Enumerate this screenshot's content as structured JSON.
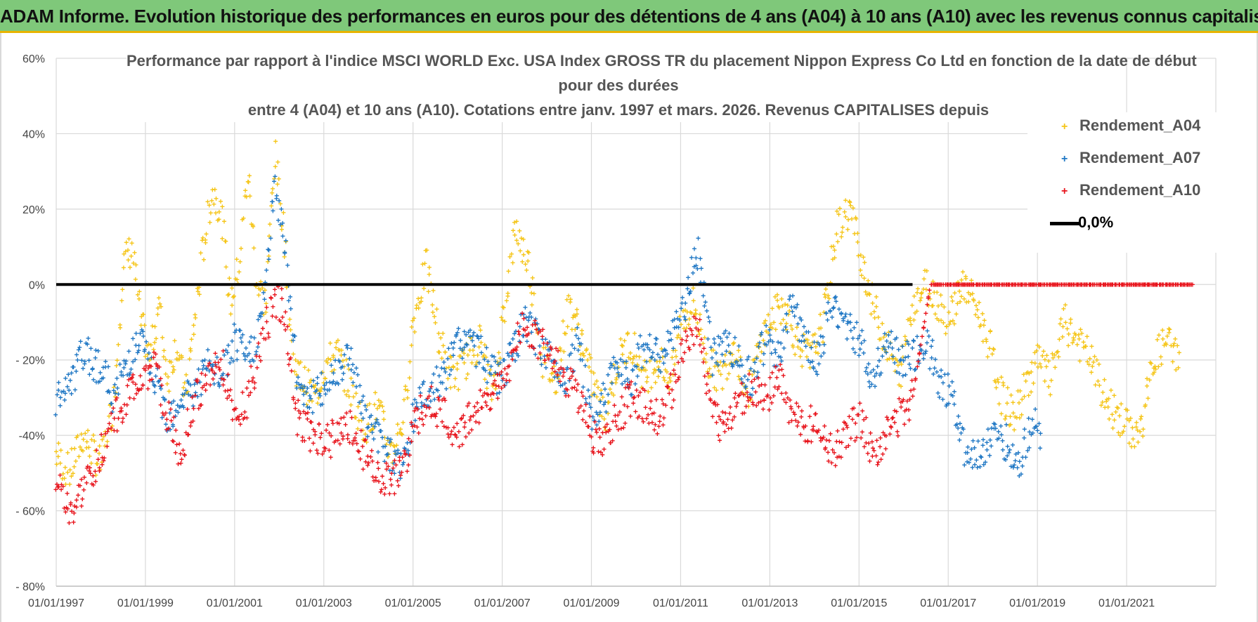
{
  "banner": {
    "title": "ADAM Informe. Evolution historique des performances en euros pour des détentions de 4 ans (A04) à 10 ans (A10) avec les revenus connus capitalisés"
  },
  "colors": {
    "banner_bg": "#7fc87a",
    "banner_border": "#e8b400",
    "a04": "#f5c518",
    "a07": "#1f77c4",
    "a10": "#e8141c",
    "zero_line": "#000000",
    "grid": "#d9d9d9"
  },
  "chart_data": {
    "type": "scatter",
    "title_lines": [
      "Performance par rapport à l'indice MSCI WORLD Exc. USA Index GROSS TR  du placement Nippon Express Co Ltd en fonction de la date de début",
      "pour des durées",
      "entre 4 (A04) et 10 ans (A10). Cotations entre janv. 1997 et mars. 2026. Revenus CAPITALISES depuis"
    ],
    "xlim": [
      1997.0,
      2023.0
    ],
    "ylim": [
      -80,
      60
    ],
    "y_ticks": [
      60,
      40,
      20,
      0,
      -20,
      -40,
      -60,
      -80
    ],
    "y_tick_labels": [
      "60%",
      "40%",
      "20%",
      "0%",
      "- 20%",
      "-40%",
      "- 60%",
      "- 80%"
    ],
    "x_ticks": [
      1997,
      1999,
      2001,
      2003,
      2005,
      2007,
      2009,
      2011,
      2013,
      2015,
      2017,
      2019,
      2021
    ],
    "x_tick_labels": [
      "01/01/1997",
      "01/01/1999",
      "01/01/2001",
      "01/01/2003",
      "01/01/2005",
      "01/01/2007",
      "01/01/2009",
      "01/01/2011",
      "01/01/2013",
      "01/01/2015",
      "01/01/2017",
      "01/01/2019",
      "01/01/2021"
    ],
    "grid": true,
    "legend_position": "top-right",
    "series": [
      {
        "name": "Rendement_A04",
        "marker": "+",
        "color": "#f5c518",
        "x": [
          1997.0,
          1997.3,
          1997.6,
          1998.0,
          1998.3,
          1998.5,
          1998.7,
          1998.9,
          1999.1,
          1999.3,
          1999.5,
          1999.7,
          1999.9,
          2000.1,
          2000.3,
          2000.5,
          2000.7,
          2000.9,
          2001.1,
          2001.3,
          2001.5,
          2001.7,
          2001.9,
          2002.1,
          2002.3,
          2002.5,
          2002.8,
          2003.0,
          2003.3,
          2003.6,
          2003.9,
          2004.2,
          2004.5,
          2004.8,
          2005.0,
          2005.3,
          2005.6,
          2005.9,
          2006.2,
          2006.5,
          2006.8,
          2007.0,
          2007.3,
          2007.6,
          2007.9,
          2008.2,
          2008.5,
          2008.8,
          2009.0,
          2009.3,
          2009.6,
          2009.9,
          2010.2,
          2010.5,
          2010.8,
          2011.0,
          2011.3,
          2011.6,
          2011.9,
          2012.2,
          2012.5,
          2012.8,
          2013.0,
          2013.3,
          2013.6,
          2013.9,
          2014.2,
          2014.5,
          2014.8,
          2015.0,
          2015.3,
          2015.6,
          2015.9,
          2016.2,
          2016.5,
          2016.8,
          2017.0,
          2017.3,
          2017.6,
          2017.9,
          2018.2,
          2018.5,
          2018.8,
          2019.0,
          2019.3,
          2019.6,
          2019.9,
          2020.2,
          2020.5,
          2020.8,
          2021.0,
          2021.3,
          2021.6,
          2021.9,
          2022.2
        ],
        "y": [
          -45,
          -50,
          -40,
          -48,
          -30,
          5,
          10,
          -10,
          -20,
          -5,
          -25,
          -15,
          -30,
          -10,
          10,
          25,
          20,
          -5,
          5,
          30,
          0,
          -5,
          35,
          15,
          -20,
          -25,
          -30,
          -22,
          -18,
          -28,
          -38,
          -32,
          -45,
          -35,
          -10,
          5,
          -15,
          -25,
          -20,
          -15,
          -30,
          -10,
          15,
          5,
          -20,
          -25,
          -5,
          -15,
          -25,
          -35,
          -20,
          -15,
          -25,
          -20,
          -25,
          -10,
          -5,
          -20,
          -25,
          -15,
          -30,
          -15,
          -10,
          -5,
          -15,
          -20,
          -10,
          15,
          20,
          10,
          -5,
          -15,
          -25,
          -5,
          0,
          -5,
          -10,
          0,
          -5,
          -15,
          -30,
          -35,
          -25,
          -20,
          -25,
          -10,
          -15,
          -20,
          -30,
          -35,
          -38,
          -40,
          -20,
          -15,
          -20
        ]
      },
      {
        "name": "Rendement_A07",
        "marker": "+",
        "color": "#1f77c4",
        "x": [
          1997.0,
          1997.3,
          1997.6,
          1998.0,
          1998.3,
          1998.6,
          1998.9,
          1999.2,
          1999.5,
          1999.8,
          2000.1,
          2000.4,
          2000.7,
          2001.0,
          2001.3,
          2001.6,
          2001.9,
          2002.1,
          2002.4,
          2002.7,
          2003.0,
          2003.3,
          2003.6,
          2003.9,
          2004.2,
          2004.5,
          2004.8,
          2005.1,
          2005.4,
          2005.7,
          2006.0,
          2006.3,
          2006.6,
          2006.9,
          2007.2,
          2007.5,
          2007.8,
          2008.1,
          2008.4,
          2008.7,
          2009.0,
          2009.3,
          2009.6,
          2009.9,
          2010.2,
          2010.5,
          2010.8,
          2011.1,
          2011.4,
          2011.7,
          2012.0,
          2012.3,
          2012.6,
          2012.9,
          2013.2,
          2013.5,
          2013.8,
          2014.1,
          2014.4,
          2014.7,
          2015.0,
          2015.3,
          2015.6,
          2015.9,
          2016.2,
          2016.5,
          2016.8,
          2017.1,
          2017.4,
          2017.7,
          2018.0,
          2018.3,
          2018.6,
          2018.9,
          2019.1
        ],
        "y": [
          -30,
          -28,
          -18,
          -22,
          -30,
          -20,
          -15,
          -25,
          -35,
          -30,
          -28,
          -22,
          -25,
          -15,
          -20,
          -10,
          25,
          15,
          -25,
          -30,
          -28,
          -22,
          -18,
          -35,
          -40,
          -45,
          -48,
          -30,
          -28,
          -25,
          -15,
          -15,
          -20,
          -25,
          -20,
          -10,
          -15,
          -20,
          -25,
          -15,
          -35,
          -30,
          -20,
          -25,
          -15,
          -20,
          -15,
          -5,
          10,
          -20,
          -15,
          -20,
          -25,
          -15,
          -20,
          -5,
          -15,
          -20,
          -5,
          -10,
          -15,
          -25,
          -15,
          -20,
          -20,
          -15,
          -25,
          -30,
          -45,
          -45,
          -40,
          -42,
          -48,
          -35,
          -40
        ]
      },
      {
        "name": "Rendement_A10",
        "marker": "+",
        "color": "#e8141c",
        "x": [
          1997.0,
          1997.3,
          1997.6,
          1998.0,
          1998.3,
          1998.6,
          1998.9,
          1999.2,
          1999.5,
          1999.8,
          2000.1,
          2000.4,
          2000.7,
          2001.0,
          2001.3,
          2001.6,
          2001.9,
          2002.1,
          2002.4,
          2002.7,
          2003.0,
          2003.3,
          2003.6,
          2003.9,
          2004.2,
          2004.5,
          2004.8,
          2005.1,
          2005.4,
          2005.7,
          2006.0,
          2006.3,
          2006.6,
          2006.9,
          2007.2,
          2007.5,
          2007.8,
          2008.1,
          2008.4,
          2008.7,
          2009.0,
          2009.3,
          2009.6,
          2009.9,
          2010.2,
          2010.5,
          2010.8,
          2011.1,
          2011.4,
          2011.7,
          2012.0,
          2012.3,
          2012.6,
          2012.9,
          2013.2,
          2013.5,
          2013.8,
          2014.1,
          2014.4,
          2014.7,
          2015.0,
          2015.3,
          2015.6,
          2015.9,
          2016.2,
          2016.6,
          2017.0,
          2017.5,
          2018.0,
          2018.5,
          2019.0,
          2019.5,
          2020.0,
          2020.5,
          2021.0,
          2021.5,
          2022.0,
          2022.5
        ],
        "y": [
          -52,
          -62,
          -55,
          -45,
          -35,
          -30,
          -25,
          -22,
          -35,
          -45,
          -30,
          -25,
          -20,
          -35,
          -30,
          -15,
          -5,
          -5,
          -35,
          -40,
          -42,
          -40,
          -38,
          -45,
          -50,
          -52,
          -48,
          -35,
          -32,
          -35,
          -40,
          -35,
          -30,
          -28,
          -20,
          -10,
          -15,
          -18,
          -25,
          -30,
          -40,
          -42,
          -35,
          -30,
          -32,
          -35,
          -28,
          -15,
          -10,
          -35,
          -38,
          -30,
          -28,
          -30,
          -25,
          -35,
          -38,
          -35,
          -45,
          -40,
          -35,
          -45,
          -40,
          -35,
          -30,
          0,
          0,
          0,
          0,
          0,
          0,
          0,
          0,
          0,
          0,
          0,
          0,
          0
        ]
      },
      {
        "name": "0,0%",
        "marker": "line",
        "color": "#000000",
        "x": [
          1997.0,
          2016.2
        ],
        "y": [
          0,
          0
        ]
      }
    ]
  }
}
